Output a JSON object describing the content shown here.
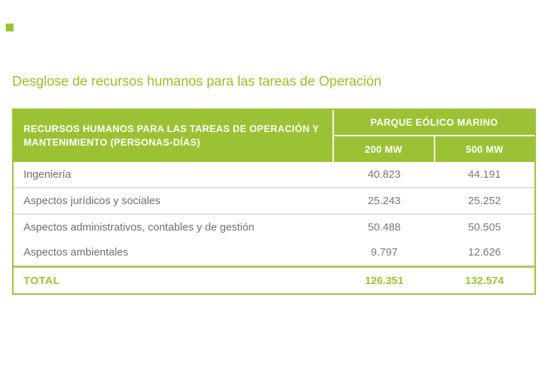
{
  "colors": {
    "green": "#9BC234",
    "title_green": "#95C128",
    "body_text": "#6D6E71",
    "number_text": "#77787B",
    "row_separator": "#DEDFE0",
    "header_text": "#FFFFFF"
  },
  "decoration": {
    "corner_marker": "green-square"
  },
  "page": {
    "title": "Desglose de recursos humanos para las tareas de Operación"
  },
  "table": {
    "header": {
      "main": "RECURSOS HUMANOS PARA LAS TAREAS DE OPERACIÓN Y MANTENIMIENTO (PERSONAS-DÍAS)",
      "group": "PARQUE EÓLICO MARINO",
      "col_200": "200 MW",
      "col_500": "500 MW"
    },
    "rows": [
      {
        "label": "Ingeniería",
        "mw200": "40.823",
        "mw500": "44.191"
      },
      {
        "label": "Aspectos jurídicos y sociales",
        "mw200": "25.243",
        "mw500": "25.252"
      },
      {
        "label": "Aspectos administrativos, contables y de gestión",
        "mw200": "50.488",
        "mw500": "50.505"
      },
      {
        "label": "Aspectos ambientales",
        "mw200": "9.797",
        "mw500": "12.626"
      }
    ],
    "total": {
      "label": "TOTAL",
      "mw200": "126.351",
      "mw500": "132.574"
    }
  }
}
